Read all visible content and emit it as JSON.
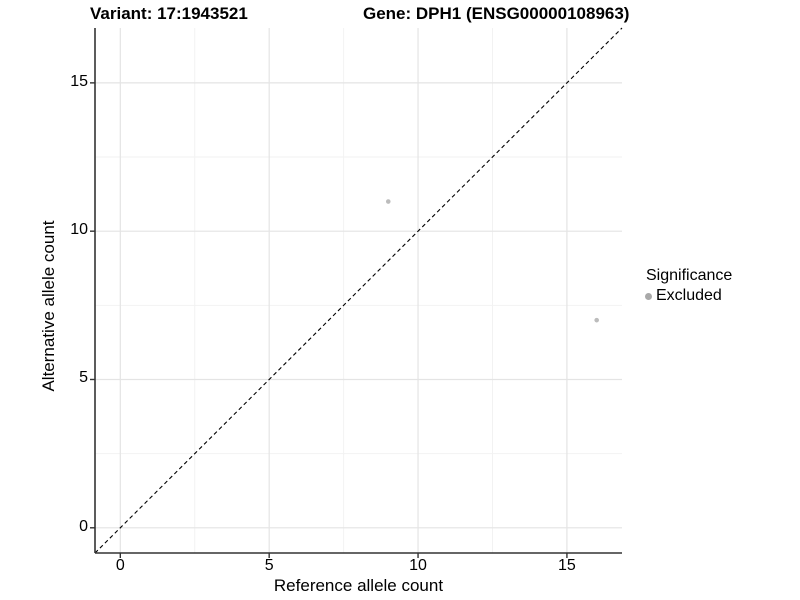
{
  "titles": {
    "left": "Variant: 17:1943521",
    "right": "Gene: DPH1 (ENSG00000108963)"
  },
  "chart_data": {
    "type": "scatter",
    "xlabel": "Reference allele count",
    "ylabel": "Alternative allele count",
    "xlim": [
      -0.85,
      16.85
    ],
    "ylim": [
      -0.85,
      16.85
    ],
    "x_ticks": [
      0,
      5,
      10,
      15
    ],
    "y_ticks": [
      0,
      5,
      10,
      15
    ],
    "x_minor_ticks": [
      2.5,
      7.5,
      12.5
    ],
    "y_minor_ticks": [
      2.5,
      7.5,
      12.5
    ],
    "grid": "on",
    "points": [
      {
        "x": 9,
        "y": 11,
        "series": "Excluded"
      },
      {
        "x": 16,
        "y": 7,
        "series": "Excluded"
      }
    ],
    "identity_line": {
      "equation": "y = x",
      "style": "dashed",
      "color": "#000000"
    },
    "legend_position": "right",
    "colors": {
      "point_excluded": "#bcbcbc",
      "grid_major": "#e4e4e4",
      "grid_minor": "#f2f2f2",
      "axis_line": "#333333",
      "tick_mark": "#333333"
    }
  },
  "legend": {
    "title": "Significance",
    "items": [
      {
        "label": "Excluded",
        "color": "#a9a9a9"
      }
    ]
  }
}
